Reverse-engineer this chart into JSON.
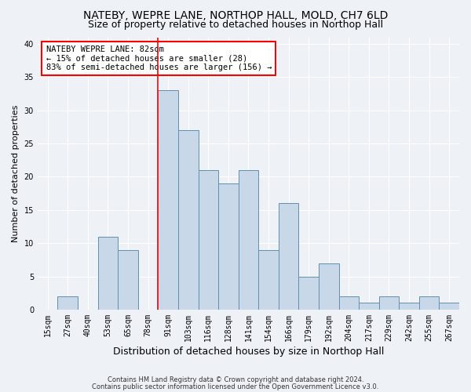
{
  "title1": "NATEBY, WEPRE LANE, NORTHOP HALL, MOLD, CH7 6LD",
  "title2": "Size of property relative to detached houses in Northop Hall",
  "xlabel": "Distribution of detached houses by size in Northop Hall",
  "ylabel": "Number of detached properties",
  "bin_labels": [
    "15sqm",
    "27sqm",
    "40sqm",
    "53sqm",
    "65sqm",
    "78sqm",
    "91sqm",
    "103sqm",
    "116sqm",
    "128sqm",
    "141sqm",
    "154sqm",
    "166sqm",
    "179sqm",
    "192sqm",
    "204sqm",
    "217sqm",
    "229sqm",
    "242sqm",
    "255sqm",
    "267sqm"
  ],
  "bar_values": [
    0,
    2,
    0,
    11,
    9,
    0,
    33,
    27,
    21,
    19,
    21,
    9,
    16,
    5,
    7,
    2,
    1,
    2,
    1,
    2,
    1
  ],
  "bar_color": "#c8d8e8",
  "bar_edge_color": "#6090b0",
  "red_line_index": 6,
  "annotation_line1": "NATEBY WEPRE LANE: 82sqm",
  "annotation_line2": "← 15% of detached houses are smaller (28)",
  "annotation_line3": "83% of semi-detached houses are larger (156) →",
  "annotation_box_color": "white",
  "annotation_box_edge_color": "red",
  "ylim": [
    0,
    41
  ],
  "yticks": [
    0,
    5,
    10,
    15,
    20,
    25,
    30,
    35,
    40
  ],
  "footnote1": "Contains HM Land Registry data © Crown copyright and database right 2024.",
  "footnote2": "Contains public sector information licensed under the Open Government Licence v3.0.",
  "bg_color": "#eef2f7",
  "grid_color": "#ffffff",
  "title1_fontsize": 10,
  "title2_fontsize": 9,
  "xlabel_fontsize": 9,
  "ylabel_fontsize": 8,
  "tick_fontsize": 7,
  "annot_fontsize": 7.5,
  "footnote_fontsize": 6
}
